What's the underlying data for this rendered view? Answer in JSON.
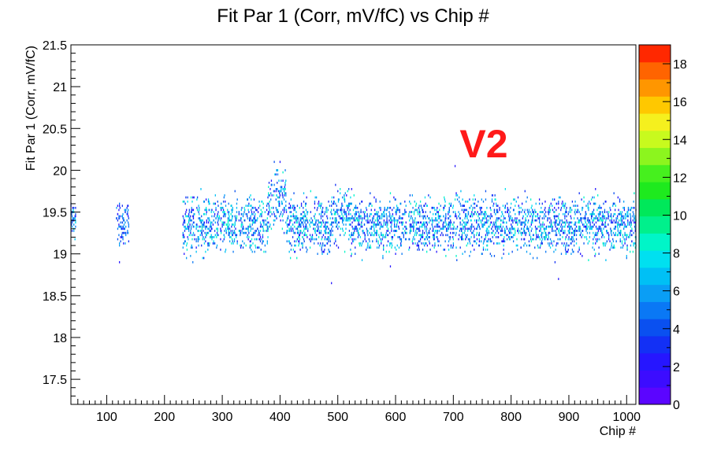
{
  "chart_data": {
    "type": "heatmap",
    "title": "Fit Par 1 (Corr, mV/fC) vs Chip #",
    "xlabel": "Chip #",
    "ylabel": "Fit Par 1 (Corr, mV/fC)",
    "xlim": [
      38,
      1016
    ],
    "ylim": [
      17.2,
      21.5
    ],
    "xticks": [
      100,
      200,
      300,
      400,
      500,
      600,
      700,
      800,
      900,
      1000
    ],
    "yticks": [
      17.5,
      18,
      18.5,
      19,
      19.5,
      20,
      20.5,
      21,
      21.5
    ],
    "ytick_labels": [
      "17.5",
      "18",
      "18.5",
      "19",
      "19.5",
      "20",
      "20.5",
      "21",
      "21.5"
    ],
    "colorbar": {
      "min": 0,
      "max": 19,
      "ticks": [
        0,
        2,
        4,
        6,
        8,
        10,
        12,
        14,
        16,
        18
      ],
      "colors": [
        "#5b05ff",
        "#3c0cff",
        "#2616ff",
        "#1330f5",
        "#0a50f0",
        "#0a78f5",
        "#0a9ef5",
        "#00c0f5",
        "#00e0f0",
        "#00f5c8",
        "#00f08c",
        "#00e85a",
        "#1eea1e",
        "#46f01e",
        "#8cf51e",
        "#c8fa1e",
        "#f5f01e",
        "#ffc800",
        "#ff9600",
        "#ff6400",
        "#ff2800"
      ]
    },
    "annotation": {
      "text": "V2",
      "color": "#ff1a1a"
    },
    "grid": false,
    "legend": "none",
    "regions": [
      {
        "x": [
          38,
          46
        ],
        "y_center": 19.42,
        "spread": 0.12,
        "color_level": [
          2,
          8
        ]
      },
      {
        "x": [
          116,
          138
        ],
        "y_center": 19.35,
        "spread": 0.15,
        "color_level": [
          2,
          6
        ]
      },
      {
        "x": [
          232,
          1016
        ],
        "y_center": 19.35,
        "spread": 0.2,
        "color_level": [
          2,
          9
        ]
      }
    ],
    "features": [
      {
        "x": [
          380,
          410
        ],
        "y_center": 19.65,
        "spread": 0.25
      },
      {
        "x": [
          490,
          520
        ],
        "y_center": 19.45,
        "spread": 0.2
      }
    ],
    "outliers": [
      {
        "x": 489,
        "y": 18.65
      },
      {
        "x": 591,
        "y": 18.85
      },
      {
        "x": 122,
        "y": 18.9
      },
      {
        "x": 400,
        "y": 20.1
      },
      {
        "x": 703,
        "y": 20.05
      },
      {
        "x": 882,
        "y": 18.7
      }
    ]
  }
}
